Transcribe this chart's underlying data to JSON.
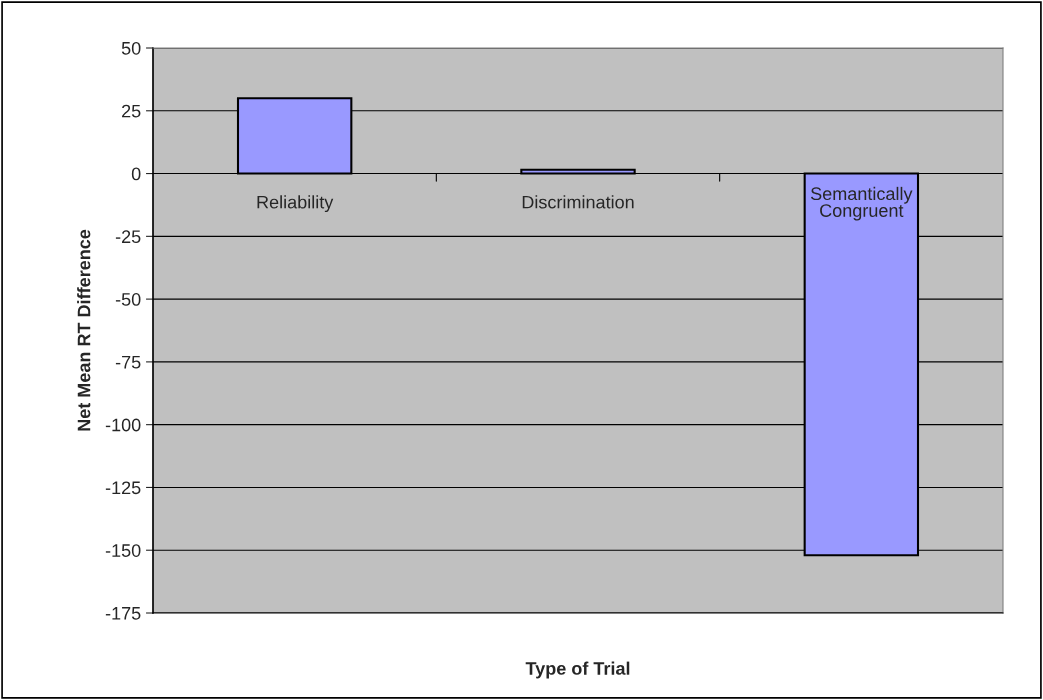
{
  "chart_data": {
    "type": "bar",
    "xlabel": "Type of Trial",
    "ylabel": "Net Mean RT Difference",
    "categories": [
      "Reliability",
      "Discrimination",
      "Semantically\nCongruent"
    ],
    "values": [
      30,
      1.5,
      -152
    ],
    "color": "#9999ff",
    "ylim": [
      -175,
      50
    ],
    "yticks": [
      -175,
      -150,
      -125,
      -100,
      -75,
      -50,
      -25,
      0,
      25,
      50
    ],
    "grid": "y"
  }
}
